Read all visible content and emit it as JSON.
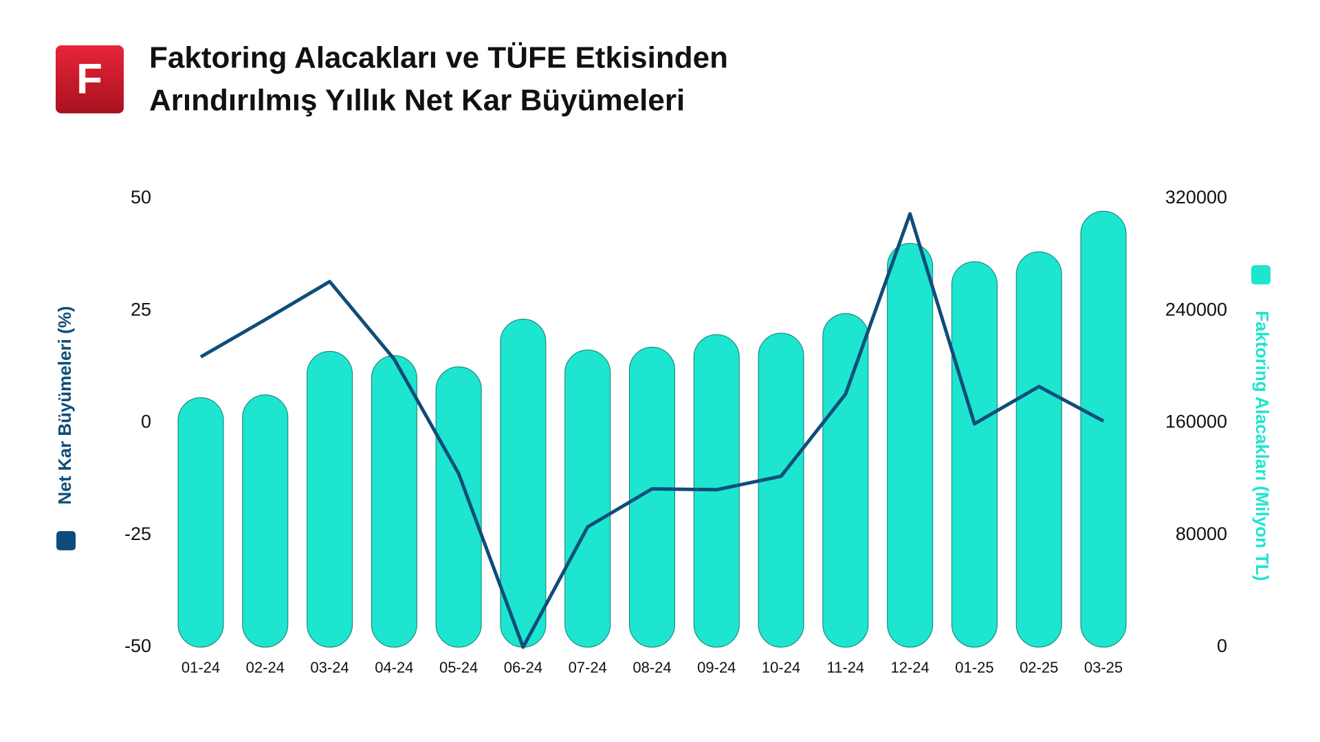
{
  "logo": "F",
  "chart_data": {
    "type": "combo",
    "title": [
      "Faktoring Alacakları ve TÜFE Etkisinden",
      "Arındırılmış Yıllık Net Kar Büyümeleri"
    ],
    "categories": [
      "01-24",
      "02-24",
      "03-24",
      "04-24",
      "05-24",
      "06-24",
      "07-24",
      "08-24",
      "09-24",
      "10-24",
      "11-24",
      "12-24",
      "01-25",
      "02-25",
      "03-25"
    ],
    "series": [
      {
        "name": "Faktoring Alacakları (Milyon TL)",
        "type": "bar",
        "axis": "y2",
        "color": "#1de5d0",
        "values": [
          178000,
          180000,
          211000,
          208000,
          200000,
          234000,
          212000,
          214000,
          223000,
          224000,
          238000,
          288000,
          275000,
          282000,
          311000
        ]
      },
      {
        "name": "Net Kar Büyümeleri (%)",
        "type": "line",
        "axis": "y",
        "color": "#0e4d7a",
        "values": [
          14.7,
          23,
          31.5,
          14.2,
          -11.3,
          -50,
          -23.2,
          -14.7,
          -14.9,
          -11.9,
          6.4,
          46.6,
          -0.2,
          8.1,
          0.4
        ]
      }
    ],
    "ylim": [
      -50,
      50
    ],
    "yticks": [
      -50,
      -25,
      0,
      25,
      50
    ],
    "y2lim": [
      0,
      320000
    ],
    "y2ticks": [
      0,
      80000,
      160000,
      240000,
      320000
    ],
    "grid": false
  }
}
